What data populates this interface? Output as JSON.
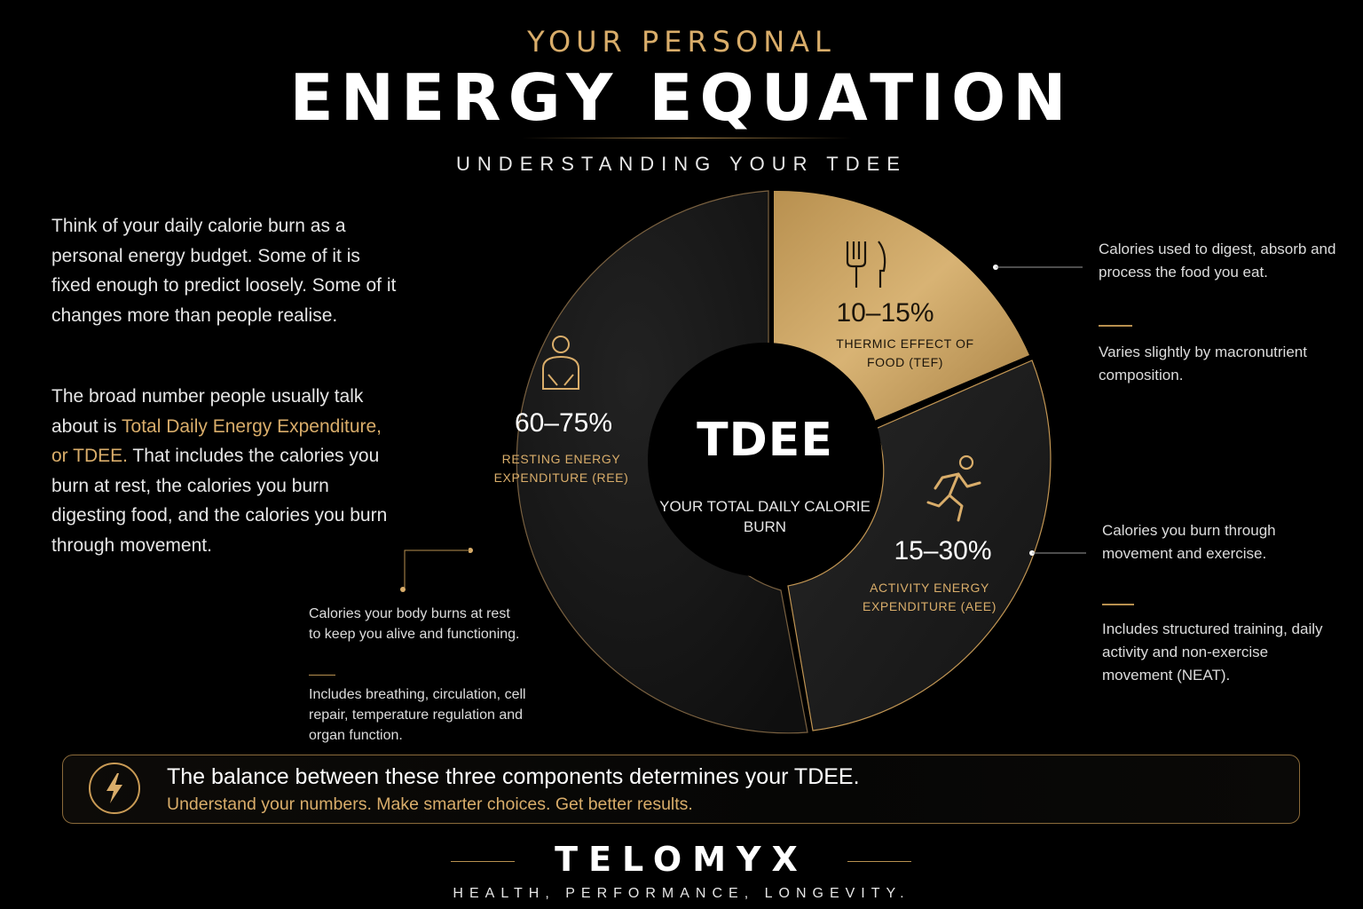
{
  "header": {
    "kicker": "YOUR PERSONAL",
    "title": "ENERGY EQUATION",
    "subtitle": "UNDERSTANDING YOUR TDEE"
  },
  "intro": {
    "p1": "Think of your daily calorie burn as a personal energy budget. Some of it is fixed enough to predict loosely. Some of it changes more than people realise.",
    "p2_before": "The broad number people usually talk about is ",
    "p2_highlight": "Total Daily Energy Expenditure, or TDEE.",
    "p2_after": " That includes the calories you burn at rest, the calories you burn digesting food, and the calories you burn through movement."
  },
  "donut": {
    "center_title": "TDEE",
    "center_subtitle": "YOUR TOTAL DAILY CALORIE BURN",
    "segments": [
      {
        "key": "ree",
        "percent_label": "60–75%",
        "label": "RESTING ENERGY EXPENDITURE (REE)",
        "share": 0.6,
        "icon": "person-icon",
        "color": "#1a1a1a"
      },
      {
        "key": "tef",
        "percent_label": "10–15%",
        "label": "THERMIC EFFECT OF FOOD (TEF)",
        "share": 0.15,
        "icon": "fork-knife-icon",
        "color": "#c9a05c"
      },
      {
        "key": "aee",
        "percent_label": "15–30%",
        "label": "ACTIVITY ENERGY EXPENDITURE (AEE)",
        "share": 0.25,
        "icon": "running-person-icon",
        "color": "#1d1d1d"
      }
    ]
  },
  "notes": {
    "tef_1": "Calories used to digest, absorb and process the food you eat.",
    "tef_2": "Varies slightly by macronutrient composition.",
    "aee_1": "Calories you burn through movement and exercise.",
    "aee_2": "Includes structured training, daily activity and non-exercise movement (NEAT).",
    "ree_1": "Calories your body burns at rest to keep you alive and functioning.",
    "ree_2": "Includes breathing, circulation, cell repair, temperature regulation and organ function."
  },
  "banner": {
    "icon": "lightning-bolt-icon",
    "main": "The balance between these three components determines your TDEE.",
    "sub": "Understand your numbers. Make smarter choices. Get better results."
  },
  "footer": {
    "brand": "TELOMYX",
    "tagline": "HEALTH, PERFORMANCE, LONGEVITY."
  },
  "colors": {
    "background": "#000000",
    "gold": "#d9ad6a",
    "gold_segment": "#c9a05c",
    "text": "#f2f2f2"
  }
}
